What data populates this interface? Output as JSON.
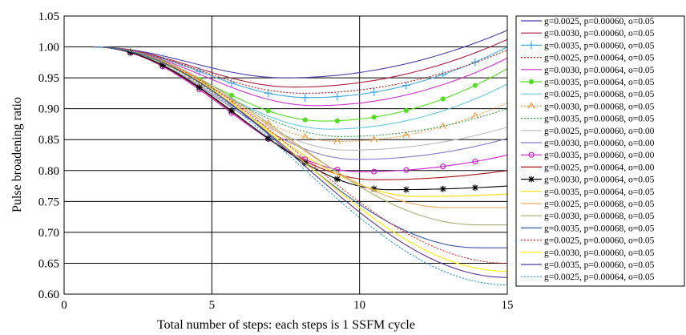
{
  "chart_data": {
    "type": "line",
    "title": "",
    "xlabel": "Total number of steps: each steps is 1 SSFM cycle",
    "ylabel": "Pulse broadening ratio",
    "xlim": [
      0,
      15
    ],
    "ylim": [
      0.6,
      1.05
    ],
    "x_ticks": [
      "0",
      "5",
      "10",
      "15"
    ],
    "y_ticks": [
      "0.60",
      "0.65",
      "0.70",
      "0.75",
      "0.80",
      "0.85",
      "0.90",
      "0.95",
      "1.00",
      "1.05"
    ],
    "grid": "horizontal lines at each y tick; vertical lines at x = 5 and 10",
    "legend_position": "right",
    "x_start": 1,
    "series": [
      {
        "name": "g=0.0025, p=0.00060, o=0.05",
        "color": "#4b3fae",
        "style": "solid",
        "marker": "",
        "min_x": 7.5,
        "min_y": 0.95,
        "end_y": 1.027
      },
      {
        "name": "g=0.0030, p=0.00060, o=0.05",
        "color": "#ad1e3f",
        "style": "solid",
        "marker": "",
        "min_x": 7.8,
        "min_y": 0.935,
        "end_y": 1.012
      },
      {
        "name": "g=0.0035, p=0.00060, o=0.05",
        "color": "#44aadd",
        "style": "solid",
        "marker": "plus",
        "min_x": 8.3,
        "min_y": 0.918,
        "end_y": 1.0
      },
      {
        "name": "g=0.0025, p=0.00064, o=0.05",
        "color": "#cc1111",
        "style": "dotted",
        "marker": "",
        "min_x": 8.1,
        "min_y": 0.925,
        "end_y": 0.995
      },
      {
        "name": "g=0.0030, p=0.00064, o=0.05",
        "color": "#cc33cc",
        "style": "solid",
        "marker": "",
        "min_x": 8.5,
        "min_y": 0.905,
        "end_y": 0.982
      },
      {
        "name": "g=0.0035, p=0.00064, o=0.05",
        "color": "#55dd22",
        "style": "solid",
        "marker": "dot",
        "min_x": 8.8,
        "min_y": 0.88,
        "end_y": 0.965
      },
      {
        "name": "g=0.0025, p=0.00068, o=0.05",
        "color": "#66c8dd",
        "style": "solid",
        "marker": "",
        "min_x": 9.0,
        "min_y": 0.867,
        "end_y": 0.94
      },
      {
        "name": "g=0.0030, p=0.00068, o=0.05",
        "color": "#ff9933",
        "style": "dotted",
        "marker": "caret",
        "min_x": 9.3,
        "min_y": 0.847,
        "end_y": 0.91
      },
      {
        "name": "g=0.0035, p=0.00068, o=0.05",
        "color": "#339944",
        "style": "dotted",
        "marker": "",
        "min_x": 9.4,
        "min_y": 0.855,
        "end_y": 0.9
      },
      {
        "name": "g=0.0025, p=0.00060, o=0.00",
        "color": "#bbbbbb",
        "style": "solid",
        "marker": "",
        "min_x": 9.6,
        "min_y": 0.833,
        "end_y": 0.87
      },
      {
        "name": "g=0.0030, p=0.00060, o=0.00",
        "color": "#8877cc",
        "style": "solid",
        "marker": "",
        "min_x": 9.9,
        "min_y": 0.818,
        "end_y": 0.852
      },
      {
        "name": "g=0.0035, p=0.00060, o=0.00",
        "color": "#cc22cc",
        "style": "solid",
        "marker": "circle",
        "min_x": 10.0,
        "min_y": 0.798,
        "end_y": 0.825
      },
      {
        "name": "g=0.0025, p=0.00064, o=0.00",
        "color": "#aa1111",
        "style": "solid",
        "marker": "",
        "min_x": 10.5,
        "min_y": 0.785,
        "end_y": 0.8
      },
      {
        "name": "g=0.0030, p=0.00064, o=0.05",
        "color": "#000000",
        "style": "solid",
        "marker": "star",
        "min_x": 11.0,
        "min_y": 0.769,
        "end_y": 0.775
      },
      {
        "name": "g=0.0035, p=0.00064, o=0.05",
        "color": "#ffdd00",
        "style": "solid",
        "marker": "",
        "min_x": 12.0,
        "min_y": 0.758,
        "end_y": 0.762
      },
      {
        "name": "g=0.0025, p=0.00068, o=0.05",
        "color": "#eeaa66",
        "style": "solid",
        "marker": "",
        "min_x": 13.0,
        "min_y": 0.74,
        "end_y": 0.74
      },
      {
        "name": "g=0.0030, p=0.00068, o=0.05",
        "color": "#aaaa77",
        "style": "solid",
        "marker": "",
        "min_x": 14.0,
        "min_y": 0.712,
        "end_y": 0.712
      },
      {
        "name": "g=0.0035, p=0.00068, o=0.05",
        "color": "#3355aa",
        "style": "solid",
        "marker": "",
        "min_x": 14.0,
        "min_y": 0.675,
        "end_y": 0.675
      },
      {
        "name": "g=0.0025, p=0.00060, o=0.05",
        "color": "#ee2222",
        "style": "dotted",
        "marker": "",
        "min_x": 15.0,
        "min_y": 0.65,
        "end_y": 0.65
      },
      {
        "name": "g=0.0030, p=0.00060, o=0.05",
        "color": "#ffee00",
        "style": "solid",
        "marker": "",
        "min_x": 15.0,
        "min_y": 0.637,
        "end_y": 0.637
      },
      {
        "name": "g=0.0035, p=0.00060, o=0.05",
        "color": "#553399",
        "style": "solid",
        "marker": "",
        "min_x": 15.0,
        "min_y": 0.627,
        "end_y": 0.627
      },
      {
        "name": "g=0.0025, p=0.00064, o=0.05",
        "color": "#1199cc",
        "style": "dotted",
        "marker": "",
        "min_x": 15.0,
        "min_y": 0.615,
        "end_y": 0.615
      }
    ]
  }
}
